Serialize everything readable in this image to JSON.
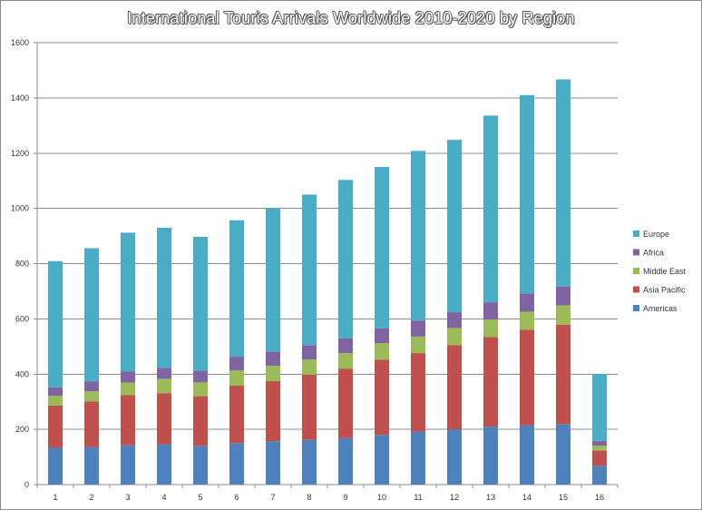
{
  "chart_data": {
    "type": "bar",
    "stacked": true,
    "title": "International Touris Arrivals Worldwide 2010-2020 by Region",
    "xlabel": "",
    "ylabel": "",
    "ylim": [
      0,
      1600
    ],
    "yticks": [
      "0",
      "200",
      "400",
      "600",
      "800",
      "1000",
      "1200",
      "1400",
      "1600"
    ],
    "grid": true,
    "legend_position": "right",
    "categories": [
      "1",
      "2",
      "3",
      "4",
      "5",
      "6",
      "7",
      "8",
      "9",
      "10",
      "11",
      "12",
      "13",
      "14",
      "15",
      "16"
    ],
    "series": [
      {
        "name": "Americas",
        "color": "#4f81bd",
        "values": [
          133,
          135,
          142,
          146,
          140,
          150,
          157,
          162,
          168,
          180,
          192,
          200,
          210,
          215,
          219,
          68
        ]
      },
      {
        "name": "Asia Pacific",
        "color": "#c0504d",
        "values": [
          153,
          166,
          182,
          185,
          180,
          208,
          218,
          236,
          252,
          272,
          284,
          305,
          324,
          346,
          360,
          55
        ]
      },
      {
        "name": "Middle East",
        "color": "#9bbb59",
        "values": [
          36,
          37,
          45,
          52,
          50,
          55,
          55,
          55,
          56,
          60,
          60,
          62,
          64,
          65,
          70,
          18
        ]
      },
      {
        "name": "Africa",
        "color": "#8064a2",
        "values": [
          30,
          35,
          40,
          40,
          42,
          50,
          52,
          52,
          54,
          54,
          58,
          57,
          62,
          66,
          68,
          17
        ]
      },
      {
        "name": "Europe",
        "color": "#4bacc6",
        "values": [
          457,
          483,
          503,
          507,
          485,
          494,
          520,
          545,
          573,
          584,
          614,
          624,
          676,
          718,
          750,
          242
        ]
      }
    ]
  }
}
